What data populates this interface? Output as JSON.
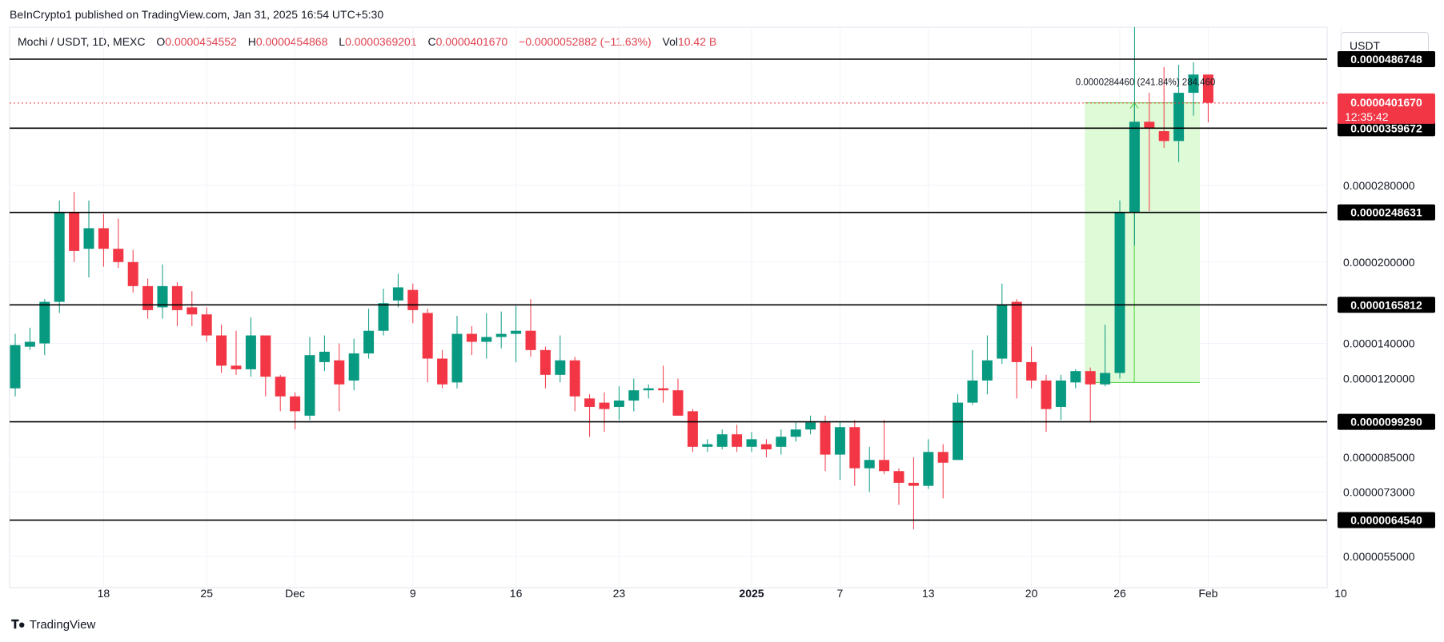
{
  "publisher": "BeInCrypto1 published on TradingView.com, Jan 31, 2025 16:54 UTC+5:30",
  "legend": {
    "symbol": "Mochi / USDT, 1D, MEXC",
    "o_label": "O",
    "o": "0.0000454552",
    "h_label": "H",
    "h": "0.0000454868",
    "l_label": "L",
    "l": "0.0000369201",
    "c_label": "C",
    "c": "0.0000401670",
    "change": "−0.0000052882 (−11.63%)",
    "vol_label": "Vol",
    "vol": "10.42 B"
  },
  "currency": "USDT",
  "brand": "TradingView",
  "colors": {
    "up": "#089981",
    "down": "#f23645",
    "measure_fill": "#d8f9d0",
    "measure_line": "#4cd137",
    "price_badge": "#f23645"
  },
  "chart_data": {
    "type": "candlestick",
    "y_axis": {
      "range": [
        4.8e-06,
        5.6e-05
      ],
      "ticks": [
        "0.0000055000",
        "0.0000073000",
        "0.0000085000",
        "0.0000120000",
        "0.0000140000",
        "0.0000200000",
        "0.0000280000"
      ]
    },
    "x_axis": {
      "ticks": [
        {
          "label": "18",
          "i": 6
        },
        {
          "label": "25",
          "i": 13
        },
        {
          "label": "Dec",
          "i": 19
        },
        {
          "label": "9",
          "i": 27
        },
        {
          "label": "16",
          "i": 34
        },
        {
          "label": "23",
          "i": 41
        },
        {
          "label": "2025",
          "i": 50,
          "bold": true
        },
        {
          "label": "7",
          "i": 56
        },
        {
          "label": "13",
          "i": 62
        },
        {
          "label": "20",
          "i": 69
        },
        {
          "label": "26",
          "i": 75
        },
        {
          "label": "Feb",
          "i": 81
        },
        {
          "label": "10",
          "i": 90
        }
      ]
    },
    "levels": [
      "0.0000486748",
      "0.0000359672",
      "0.0000248631",
      "0.0000165812",
      "0.0000099290",
      "0.0000064540"
    ],
    "current_price": {
      "value": "0.0000401670",
      "countdown": "12:35:42"
    },
    "measure": {
      "label": "0.0000284460 (241.84%) 284.460",
      "from": 1.18e-05,
      "to": 4.02e-05,
      "start_i": 73,
      "end_i": 80
    },
    "candles": [
      [
        1.15e-05,
        1.39e-05,
        1.46e-05,
        1.11e-05
      ],
      [
        1.38e-05,
        1.41e-05,
        1.5e-05,
        1.36e-05
      ],
      [
        1.4e-05,
        1.68e-05,
        1.7e-05,
        1.33e-05
      ],
      [
        1.68e-05,
        2.49e-05,
        2.62e-05,
        1.6e-05
      ],
      [
        2.49e-05,
        2.1e-05,
        2.72e-05,
        2e-05
      ],
      [
        2.12e-05,
        2.32e-05,
        2.62e-05,
        1.87e-05
      ],
      [
        2.32e-05,
        2.12e-05,
        2.47e-05,
        1.96e-05
      ],
      [
        2.12e-05,
        2e-05,
        2.42e-05,
        1.95e-05
      ],
      [
        2e-05,
        1.8e-05,
        2.11e-05,
        1.75e-05
      ],
      [
        1.8e-05,
        1.62e-05,
        1.86e-05,
        1.56e-05
      ],
      [
        1.64e-05,
        1.8e-05,
        1.98e-05,
        1.56e-05
      ],
      [
        1.8e-05,
        1.62e-05,
        1.83e-05,
        1.51e-05
      ],
      [
        1.64e-05,
        1.59e-05,
        1.76e-05,
        1.51e-05
      ],
      [
        1.59e-05,
        1.45e-05,
        1.64e-05,
        1.41e-05
      ],
      [
        1.45e-05,
        1.27e-05,
        1.52e-05,
        1.23e-05
      ],
      [
        1.27e-05,
        1.25e-05,
        1.48e-05,
        1.22e-05
      ],
      [
        1.25e-05,
        1.45e-05,
        1.57e-05,
        1.21e-05
      ],
      [
        1.45e-05,
        1.21e-05,
        1.45e-05,
        1.11e-05
      ],
      [
        1.21e-05,
        1.11e-05,
        1.22e-05,
        1.04e-05
      ],
      [
        1.11e-05,
        1.04e-05,
        1.13e-05,
        9.6e-06
      ],
      [
        1.02e-05,
        1.33e-05,
        1.44e-05,
        1e-05
      ],
      [
        1.29e-05,
        1.35e-05,
        1.45e-05,
        1.24e-05
      ],
      [
        1.3e-05,
        1.17e-05,
        1.4e-05,
        1.04e-05
      ],
      [
        1.19e-05,
        1.34e-05,
        1.43e-05,
        1.14e-05
      ],
      [
        1.34e-05,
        1.48e-05,
        1.63e-05,
        1.31e-05
      ],
      [
        1.48e-05,
        1.67e-05,
        1.78e-05,
        1.45e-05
      ],
      [
        1.69e-05,
        1.79e-05,
        1.9e-05,
        1.64e-05
      ],
      [
        1.77e-05,
        1.62e-05,
        1.82e-05,
        1.53e-05
      ],
      [
        1.6e-05,
        1.31e-05,
        1.63e-05,
        1.18e-05
      ],
      [
        1.31e-05,
        1.17e-05,
        1.36e-05,
        1.15e-05
      ],
      [
        1.18e-05,
        1.46e-05,
        1.58e-05,
        1.15e-05
      ],
      [
        1.46e-05,
        1.41e-05,
        1.51e-05,
        1.33e-05
      ],
      [
        1.41e-05,
        1.44e-05,
        1.6e-05,
        1.31e-05
      ],
      [
        1.44e-05,
        1.46e-05,
        1.61e-05,
        1.37e-05
      ],
      [
        1.46e-05,
        1.48e-05,
        1.65e-05,
        1.29e-05
      ],
      [
        1.48e-05,
        1.36e-05,
        1.7e-05,
        1.32e-05
      ],
      [
        1.36e-05,
        1.22e-05,
        1.38e-05,
        1.15e-05
      ],
      [
        1.22e-05,
        1.3e-05,
        1.45e-05,
        1.18e-05
      ],
      [
        1.3e-05,
        1.11e-05,
        1.32e-05,
        1.04e-05
      ],
      [
        1.1e-05,
        1.06e-05,
        1.12e-05,
        9.3e-06
      ],
      [
        1.08e-05,
        1.05e-05,
        1.13e-05,
        9.5e-06
      ],
      [
        1.06e-05,
        1.09e-05,
        1.16e-05,
        1e-05
      ],
      [
        1.09e-05,
        1.14e-05,
        1.2e-05,
        1.04e-05
      ],
      [
        1.14e-05,
        1.15e-05,
        1.17e-05,
        1.1e-05
      ],
      [
        1.15e-05,
        1.14e-05,
        1.27e-05,
        1.08e-05
      ],
      [
        1.14e-05,
        1.02e-05,
        1.2e-05,
        1.02e-05
      ],
      [
        1.04e-05,
        8.9e-06,
        1.05e-05,
        8.7e-06
      ],
      [
        8.9e-06,
        9e-06,
        9.2e-06,
        8.7e-06
      ],
      [
        8.9e-06,
        9.4e-06,
        9.6e-06,
        8.8e-06
      ],
      [
        9.4e-06,
        8.9e-06,
        9.8e-06,
        8.7e-06
      ],
      [
        8.9e-06,
        9.2e-06,
        9.5e-06,
        8.7e-06
      ],
      [
        9e-06,
        8.8e-06,
        9.2e-06,
        8.5e-06
      ],
      [
        8.9e-06,
        9.3e-06,
        9.6e-06,
        8.6e-06
      ],
      [
        9.3e-06,
        9.6e-06,
        9.9e-06,
        9.1e-06
      ],
      [
        9.6e-06,
        9.9e-06,
        1.02e-05,
        9.4e-06
      ],
      [
        9.9e-06,
        8.6e-06,
        1.02e-05,
        8e-06
      ],
      [
        8.6e-06,
        9.7e-06,
        9.9e-06,
        7.7e-06
      ],
      [
        9.7e-06,
        8.1e-06,
        1e-05,
        7.5e-06
      ],
      [
        8.1e-06,
        8.4e-06,
        8.9e-06,
        7.3e-06
      ],
      [
        8.4e-06,
        8e-06,
        1e-05,
        7.9e-06
      ],
      [
        8e-06,
        7.6e-06,
        8.1e-06,
        6.9e-06
      ],
      [
        7.6e-06,
        7.5e-06,
        8.5e-06,
        6.2e-06
      ],
      [
        7.5e-06,
        8.7e-06,
        9.2e-06,
        7.4e-06
      ],
      [
        8.7e-06,
        8.3e-06,
        9e-06,
        7.1e-06
      ],
      [
        8.4e-06,
        1.08e-05,
        1.12e-05,
        8.4e-06
      ],
      [
        1.08e-05,
        1.19e-05,
        1.36e-05,
        1.07e-05
      ],
      [
        1.19e-05,
        1.3e-05,
        1.45e-05,
        1.12e-05
      ],
      [
        1.31e-05,
        1.66e-05,
        1.82e-05,
        1.28e-05
      ],
      [
        1.68e-05,
        1.29e-05,
        1.7e-05,
        1.1e-05
      ],
      [
        1.29e-05,
        1.19e-05,
        1.38e-05,
        1.15e-05
      ],
      [
        1.19e-05,
        1.05e-05,
        1.22e-05,
        9.5e-06
      ],
      [
        1.06e-05,
        1.19e-05,
        1.22e-05,
        1e-05
      ],
      [
        1.18e-05,
        1.24e-05,
        1.25e-05,
        1.15e-05
      ],
      [
        1.24e-05,
        1.17e-05,
        1.26e-05,
        9.9e-06
      ],
      [
        1.17e-05,
        1.23e-05,
        1.52e-05,
        1.16e-05
      ],
      [
        1.23e-05,
        2.49e-05,
        2.62e-05,
        1.2e-05
      ],
      [
        2.49e-05,
        3.7e-05,
        5.6e-05,
        2.15e-05
      ],
      [
        3.7e-05,
        3.6e-05,
        4.2e-05,
        2.5e-05
      ],
      [
        3.55e-05,
        3.4e-05,
        4.7e-05,
        3.3e-05
      ],
      [
        3.4e-05,
        4.2e-05,
        4.75e-05,
        3.1e-05
      ],
      [
        4.2e-05,
        4.55e-05,
        4.8e-05,
        3.8e-05
      ],
      [
        4.55e-05,
        4.02e-05,
        4.55e-05,
        3.69e-05
      ]
    ]
  }
}
